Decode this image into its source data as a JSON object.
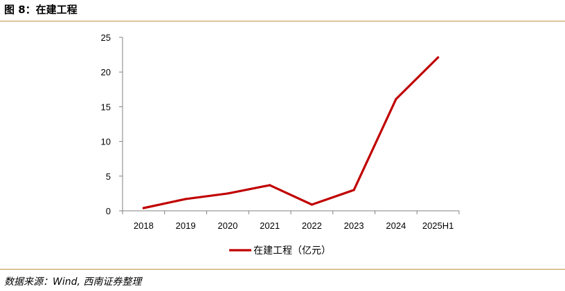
{
  "figure": {
    "title": "图 8：在建工程",
    "source": "数据来源：Wind,  西南证券整理"
  },
  "colors": {
    "line": "#c00000",
    "rule": "#c0914a",
    "axis": "#808080"
  },
  "chart_data": {
    "type": "line",
    "title": "",
    "xlabel": "",
    "ylabel": "",
    "categories": [
      "2018",
      "2019",
      "2020",
      "2021",
      "2022",
      "2023",
      "2024",
      "2025H1"
    ],
    "series": [
      {
        "name": "在建工程（亿元）",
        "values": [
          0.4,
          1.7,
          2.5,
          3.7,
          0.9,
          3.0,
          16.1,
          22.1
        ]
      }
    ],
    "ylim": [
      0,
      25
    ],
    "yticks": [
      0,
      5,
      10,
      15,
      20,
      25
    ],
    "grid": false,
    "legend": "bottom-center"
  }
}
